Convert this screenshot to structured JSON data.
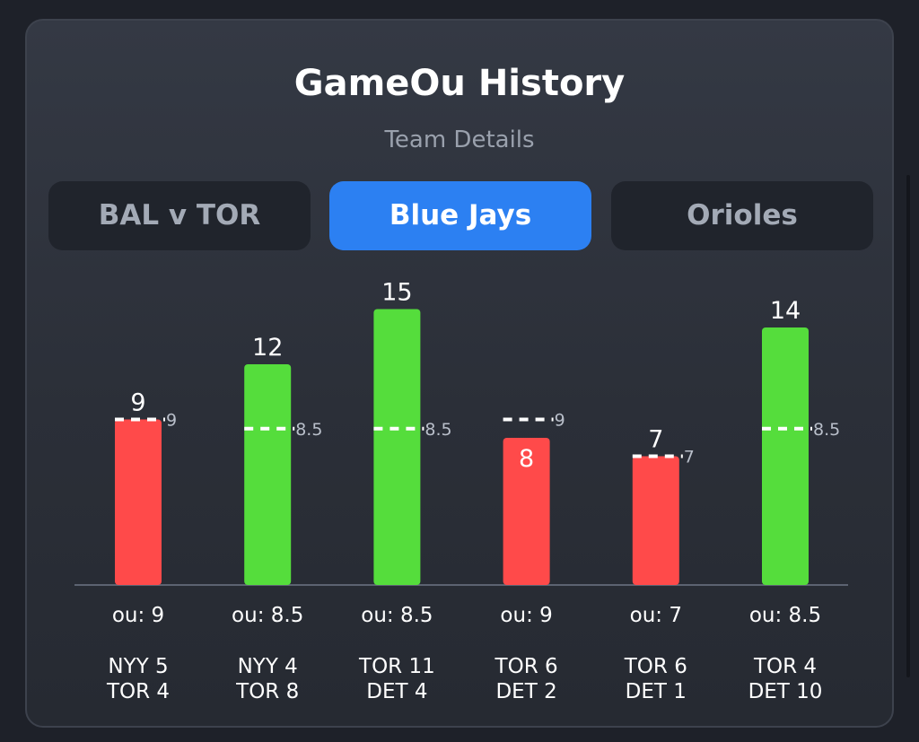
{
  "header": {
    "title": "GameOu History",
    "subtitle": "Team Details"
  },
  "tabs": [
    {
      "label": "BAL v TOR",
      "active": false
    },
    {
      "label": "Blue Jays",
      "active": true
    },
    {
      "label": "Orioles",
      "active": false
    }
  ],
  "colors": {
    "over": "#55dd3c",
    "under": "#ff4a4a",
    "tab_active": "#2c80f2",
    "line": "#ffffff"
  },
  "chart_data": {
    "type": "bar",
    "categories": [
      "NYY 5\nTOR 4",
      "NYY 4\nTOR 8",
      "TOR 11\nDET 4",
      "TOR 6\nDET 2",
      "TOR 6\nDET 1",
      "TOR 4\nDET 10"
    ],
    "values": [
      9,
      12,
      15,
      8,
      7,
      14
    ],
    "ou_lines": [
      9,
      8.5,
      8.5,
      9,
      7,
      8.5
    ],
    "ou_labels": [
      "ou: 9",
      "ou: 8.5",
      "ou: 8.5",
      "ou: 9",
      "ou: 7",
      "ou: 8.5"
    ],
    "value_labels": [
      "9",
      "12",
      "15",
      "8",
      "7",
      "14"
    ],
    "line_labels": [
      "9",
      "8.5",
      "8.5",
      "9",
      "7",
      "8.5"
    ],
    "label_inside": [
      false,
      false,
      false,
      true,
      false,
      false
    ],
    "ylim": [
      0,
      15
    ],
    "grid": false,
    "legend": "none"
  }
}
